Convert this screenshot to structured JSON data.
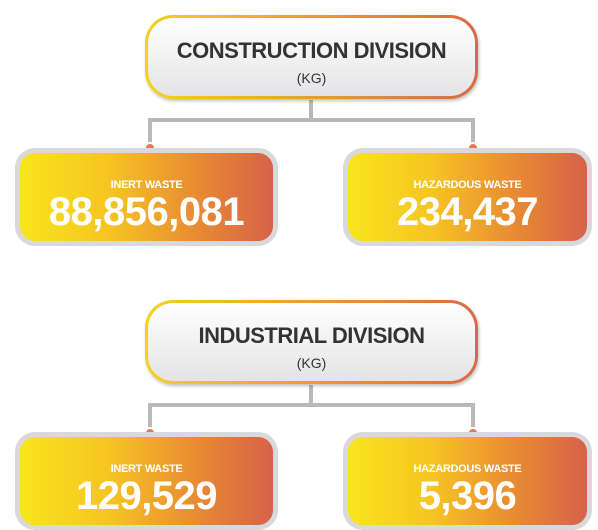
{
  "divisions": [
    {
      "title": "CONSTRUCTION DIVISION",
      "unit": "(KG)",
      "items": [
        {
          "label": "INERT WASTE",
          "value": "88,856,081"
        },
        {
          "label": "HAZARDOUS WASTE",
          "value": "234,437"
        }
      ]
    },
    {
      "title": "INDUSTRIAL DIVISION",
      "unit": "(KG)",
      "items": [
        {
          "label": "INERT WASTE",
          "value": "129,529"
        },
        {
          "label": "HAZARDOUS WASTE",
          "value": "5,396"
        }
      ]
    }
  ]
}
